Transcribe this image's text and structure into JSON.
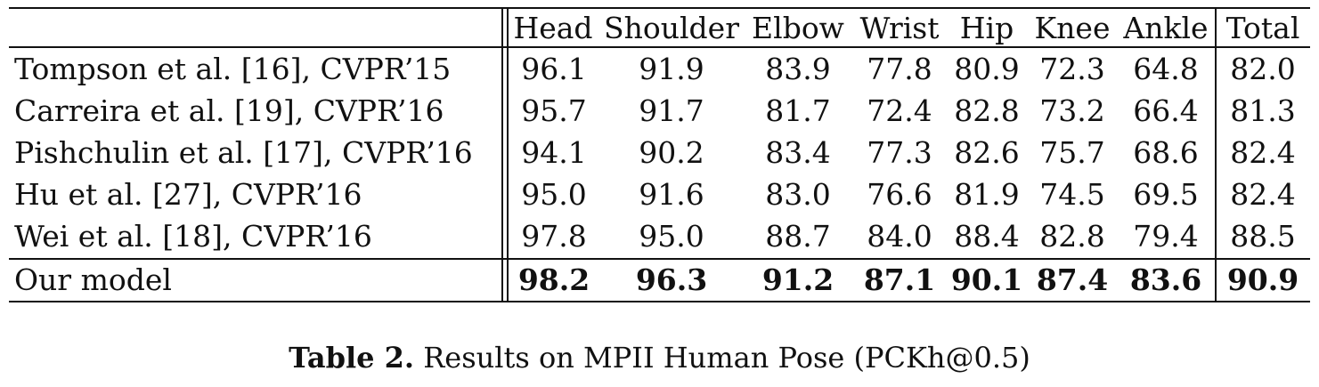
{
  "table": {
    "header": [
      "",
      "Head",
      "Shoulder",
      "Elbow",
      "Wrist",
      "Hip",
      "Knee",
      "Ankle",
      "Total"
    ],
    "rows": [
      {
        "method": "Tompson et al. [16], CVPR’15",
        "values": [
          "96.1",
          "91.9",
          "83.9",
          "77.8",
          "80.9",
          "72.3",
          "64.8",
          "82.0"
        ],
        "bold": false
      },
      {
        "method": "Carreira et al. [19], CVPR’16",
        "values": [
          "95.7",
          "91.7",
          "81.7",
          "72.4",
          "82.8",
          "73.2",
          "66.4",
          "81.3"
        ],
        "bold": false
      },
      {
        "method": "Pishchulin et al. [17], CVPR’16",
        "values": [
          "94.1",
          "90.2",
          "83.4",
          "77.3",
          "82.6",
          "75.7",
          "68.6",
          "82.4"
        ],
        "bold": false
      },
      {
        "method": "Hu et al. [27], CVPR’16",
        "values": [
          "95.0",
          "91.6",
          "83.0",
          "76.6",
          "81.9",
          "74.5",
          "69.5",
          "82.4"
        ],
        "bold": false
      },
      {
        "method": "Wei et al. [18], CVPR’16",
        "values": [
          "97.8",
          "95.0",
          "88.7",
          "84.0",
          "88.4",
          "82.8",
          "79.4",
          "88.5"
        ],
        "bold": false
      },
      {
        "method": "Our model",
        "values": [
          "98.2",
          "96.3",
          "91.2",
          "87.1",
          "90.1",
          "87.4",
          "83.6",
          "90.9"
        ],
        "bold": true
      }
    ]
  },
  "caption": {
    "label": "Table 2.",
    "text": " Results on MPII Human Pose (PCKh@0.5)"
  }
}
